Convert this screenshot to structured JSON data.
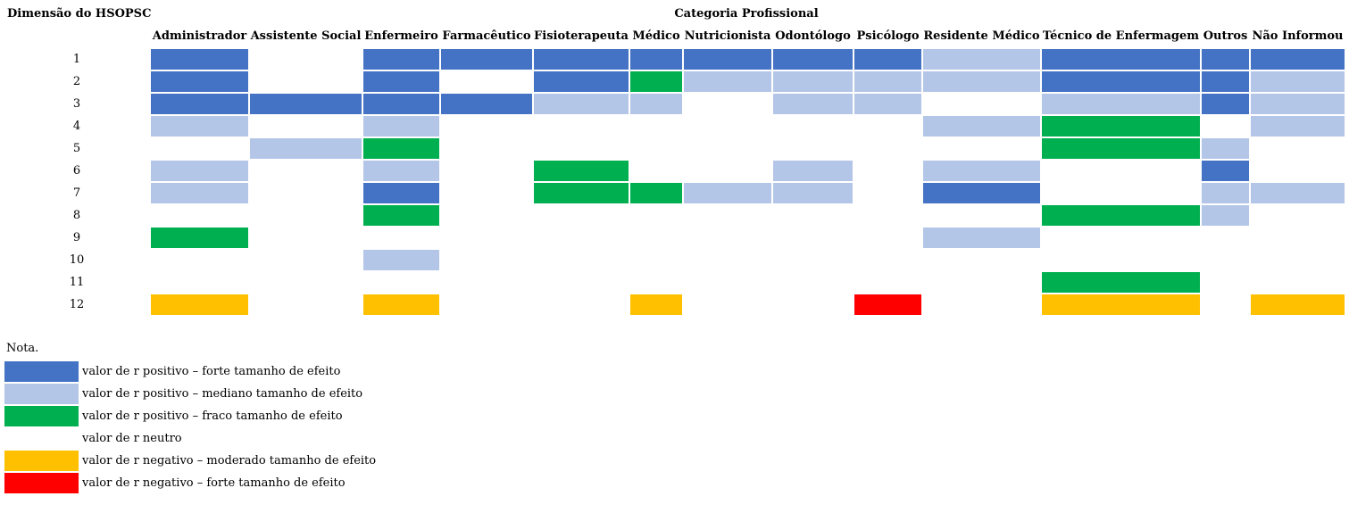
{
  "y_axis_title": "Dimensão do HSOPSC",
  "x_axis_title": "Categoria Profissional",
  "note_label": "Nota.",
  "colors": {
    "strong_pos": "#4472C4",
    "medium_pos": "#B4C6E7",
    "weak_pos": "#00B050",
    "neutral": "#FFFFFF",
    "moderate_neg": "#FFC000",
    "strong_neg": "#FF0000"
  },
  "legend": [
    {
      "key": "strong_pos",
      "label": "valor de r positivo – forte tamanho de efeito"
    },
    {
      "key": "medium_pos",
      "label": "valor de r positivo – mediano tamanho de efeito"
    },
    {
      "key": "weak_pos",
      "label": "valor de r positivo – fraco tamanho de efeito"
    },
    {
      "key": "neutral",
      "label": "valor de r neutro"
    },
    {
      "key": "moderate_neg",
      "label": "valor de r negativo – moderado tamanho de efeito"
    },
    {
      "key": "strong_neg",
      "label": "valor de r negativo – forte tamanho de efeito"
    }
  ],
  "chart_data": {
    "type": "heatmap",
    "title": "",
    "xlabel": "Categoria Profissional",
    "ylabel": "Dimensão do HSOPSC",
    "columns": [
      "Administrador",
      "Assistente Social",
      "Enfermeiro",
      "Farmacêutico",
      "Fisioterapeuta",
      "Médico",
      "Nutricionista",
      "Odontólogo",
      "Psicólogo",
      "Residente Médico",
      "Técnico de Enfermagem",
      "Outros",
      "Não Informou"
    ],
    "rows": [
      "1",
      "2",
      "3",
      "4",
      "5",
      "6",
      "7",
      "8",
      "9",
      "10",
      "11",
      "12"
    ],
    "cells": [
      [
        "strong_pos",
        "neutral",
        "strong_pos",
        "strong_pos",
        "strong_pos",
        "strong_pos",
        "strong_pos",
        "strong_pos",
        "strong_pos",
        "medium_pos",
        "strong_pos",
        "strong_pos",
        "strong_pos"
      ],
      [
        "strong_pos",
        "neutral",
        "strong_pos",
        "neutral",
        "strong_pos",
        "weak_pos",
        "medium_pos",
        "medium_pos",
        "medium_pos",
        "medium_pos",
        "strong_pos",
        "strong_pos",
        "medium_pos"
      ],
      [
        "strong_pos",
        "strong_pos",
        "strong_pos",
        "strong_pos",
        "medium_pos",
        "medium_pos",
        "neutral",
        "medium_pos",
        "medium_pos",
        "neutral",
        "medium_pos",
        "strong_pos",
        "medium_pos"
      ],
      [
        "medium_pos",
        "neutral",
        "medium_pos",
        "neutral",
        "neutral",
        "neutral",
        "neutral",
        "neutral",
        "neutral",
        "medium_pos",
        "weak_pos",
        "neutral",
        "medium_pos"
      ],
      [
        "neutral",
        "medium_pos",
        "weak_pos",
        "neutral",
        "neutral",
        "neutral",
        "neutral",
        "neutral",
        "neutral",
        "neutral",
        "weak_pos",
        "medium_pos",
        "neutral"
      ],
      [
        "medium_pos",
        "neutral",
        "medium_pos",
        "neutral",
        "weak_pos",
        "neutral",
        "neutral",
        "medium_pos",
        "neutral",
        "medium_pos",
        "neutral",
        "strong_pos",
        "neutral"
      ],
      [
        "medium_pos",
        "neutral",
        "strong_pos",
        "neutral",
        "weak_pos",
        "weak_pos",
        "medium_pos",
        "medium_pos",
        "neutral",
        "strong_pos",
        "neutral",
        "medium_pos",
        "medium_pos"
      ],
      [
        "neutral",
        "neutral",
        "weak_pos",
        "neutral",
        "neutral",
        "neutral",
        "neutral",
        "neutral",
        "neutral",
        "neutral",
        "weak_pos",
        "medium_pos",
        "neutral"
      ],
      [
        "weak_pos",
        "neutral",
        "neutral",
        "neutral",
        "neutral",
        "neutral",
        "neutral",
        "neutral",
        "neutral",
        "medium_pos",
        "neutral",
        "neutral",
        "neutral"
      ],
      [
        "neutral",
        "neutral",
        "medium_pos",
        "neutral",
        "neutral",
        "neutral",
        "neutral",
        "neutral",
        "neutral",
        "neutral",
        "neutral",
        "neutral",
        "neutral"
      ],
      [
        "neutral",
        "neutral",
        "neutral",
        "neutral",
        "neutral",
        "neutral",
        "neutral",
        "neutral",
        "neutral",
        "neutral",
        "weak_pos",
        "neutral",
        "neutral"
      ],
      [
        "moderate_neg",
        "neutral",
        "moderate_neg",
        "neutral",
        "neutral",
        "moderate_neg",
        "neutral",
        "neutral",
        "strong_neg",
        "neutral",
        "moderate_neg",
        "neutral",
        "moderate_neg"
      ]
    ]
  }
}
